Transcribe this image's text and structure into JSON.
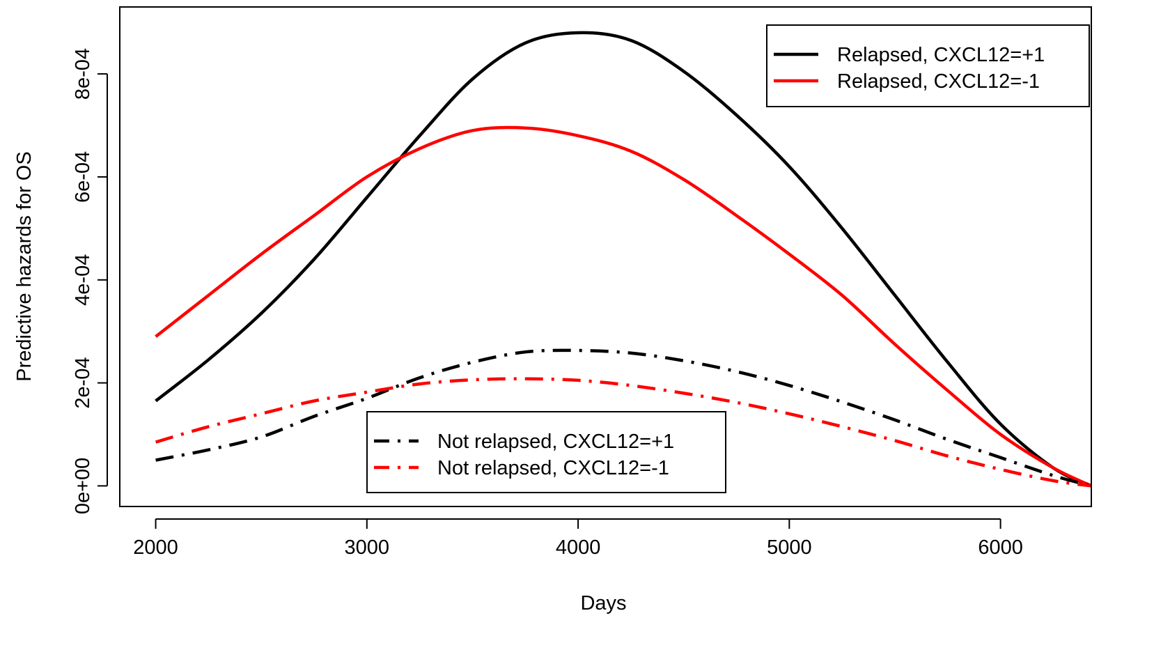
{
  "chart_data": {
    "type": "line",
    "title": "",
    "xlabel": "Days",
    "ylabel": "Predictive hazards for OS",
    "xlim": [
      1830,
      6430
    ],
    "ylim": [
      -4e-05,
      0.00093
    ],
    "x_ticks": [
      2000,
      3000,
      4000,
      5000,
      6000
    ],
    "x_tick_labels": [
      "2000",
      "3000",
      "4000",
      "5000",
      "6000"
    ],
    "y_ticks": [
      0,
      0.0002,
      0.0004,
      0.0006,
      0.0008
    ],
    "y_tick_labels": [
      "0e+00",
      "2e-04",
      "4e-04",
      "6e-04",
      "8e-04"
    ],
    "x": [
      2000,
      2250,
      2500,
      2750,
      3000,
      3250,
      3500,
      3750,
      4000,
      4250,
      4500,
      4750,
      5000,
      5250,
      5500,
      5750,
      6000,
      6250,
      6430
    ],
    "series": [
      {
        "name": "Relapsed, CXCL12=+1",
        "color": "#000000",
        "style": "solid",
        "legend": "top-right",
        "values": [
          0.000165,
          0.000245,
          0.000335,
          0.00044,
          0.00056,
          0.00068,
          0.00079,
          0.00086,
          0.00088,
          0.000865,
          0.000805,
          0.00072,
          0.00062,
          0.0005,
          0.00037,
          0.00024,
          0.00012,
          3.5e-05,
          0.0
        ]
      },
      {
        "name": "Relapsed, CXCL12=-1",
        "color": "#ff0000",
        "style": "solid",
        "legend": "top-right",
        "values": [
          0.00029,
          0.00037,
          0.00045,
          0.000525,
          0.0006,
          0.000655,
          0.00069,
          0.000695,
          0.00068,
          0.00065,
          0.000595,
          0.000525,
          0.00045,
          0.00037,
          0.000275,
          0.000185,
          0.0001,
          3.5e-05,
          0.0
        ]
      },
      {
        "name": "Not relapsed, CXCL12=+1",
        "color": "#000000",
        "style": "dashdot",
        "legend": "bottom-center",
        "values": [
          5e-05,
          7e-05,
          9.5e-05,
          0.000135,
          0.00017,
          0.00021,
          0.00024,
          0.00026,
          0.000263,
          0.000258,
          0.000243,
          0.000222,
          0.000195,
          0.000163,
          0.000128,
          9e-05,
          5.5e-05,
          2e-05,
          0.0
        ]
      },
      {
        "name": "Not relapsed, CXCL12=-1",
        "color": "#ff0000",
        "style": "dashdot",
        "legend": "bottom-center",
        "values": [
          8.5e-05,
          0.000115,
          0.00014,
          0.000165,
          0.000182,
          0.000198,
          0.000206,
          0.000208,
          0.000205,
          0.000195,
          0.00018,
          0.000162,
          0.00014,
          0.000115,
          8.8e-05,
          5.8e-05,
          3.2e-05,
          1e-05,
          0.0
        ]
      }
    ],
    "grid": false,
    "legends": [
      "top-right",
      "bottom-center"
    ]
  }
}
